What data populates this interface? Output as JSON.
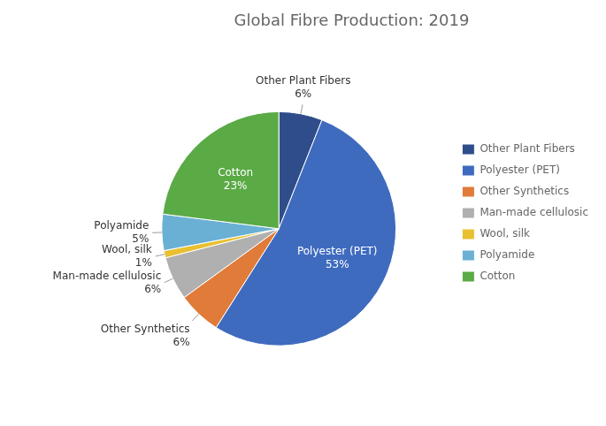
{
  "chart_data": {
    "type": "pie",
    "title": "Global Fibre Production: 2019",
    "categories": [
      "Other Plant Fibers",
      "Polyester (PET)",
      "Other Synthetics",
      "Man-made cellulosic",
      "Wool, silk",
      "Polyamide",
      "Cotton"
    ],
    "values": [
      6,
      53,
      6,
      6,
      1,
      5,
      23
    ],
    "value_labels": [
      "6%",
      "53%",
      "6%",
      "6%",
      "1%",
      "5%",
      "23%"
    ],
    "colors": [
      "#2e4d8a",
      "#3f6bbf",
      "#e07b39",
      "#b0b0b0",
      "#e8c030",
      "#6ab0d4",
      "#5aaa46"
    ],
    "data_labels": true,
    "legend": "right"
  }
}
